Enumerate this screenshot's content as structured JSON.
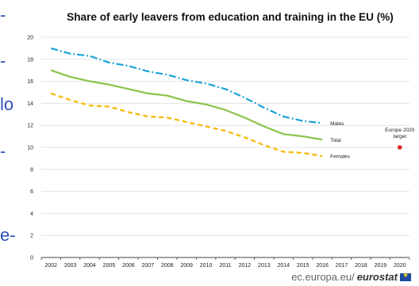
{
  "side_fragments": [
    "-",
    "-",
    "lo",
    "-",
    "e-"
  ],
  "footer": {
    "plain": "ec.europa.eu/",
    "bold": "eurostat"
  },
  "chart_data": {
    "type": "line",
    "title": "Share of early leavers from education and training in the EU (%)",
    "xlabel": "",
    "ylabel": "",
    "x": [
      "2002",
      "2003",
      "2004",
      "2005",
      "2006",
      "2007",
      "2008",
      "2009",
      "2010",
      "2011",
      "2012",
      "2013",
      "2014",
      "2015",
      "2016",
      "2017",
      "2018",
      "2019",
      "2020"
    ],
    "ylim": [
      0,
      20
    ],
    "yticks": [
      0,
      2,
      4,
      6,
      8,
      10,
      12,
      14,
      16,
      18,
      20
    ],
    "grid": "horizontal",
    "series": [
      {
        "name": "Males",
        "color": "#1aa3d9",
        "style": "dash-dot",
        "values": [
          19.0,
          18.5,
          18.3,
          17.7,
          17.4,
          16.9,
          16.6,
          16.1,
          15.8,
          15.3,
          14.5,
          13.6,
          12.8,
          12.4,
          12.2,
          null,
          null,
          null,
          null
        ]
      },
      {
        "name": "Total",
        "color": "#8bc34a",
        "style": "solid",
        "values": [
          17.0,
          16.4,
          16.0,
          15.7,
          15.3,
          14.9,
          14.7,
          14.2,
          13.9,
          13.4,
          12.7,
          11.9,
          11.2,
          11.0,
          10.7,
          null,
          null,
          null,
          null
        ]
      },
      {
        "name": "Females",
        "color": "#f5b800",
        "style": "dashed",
        "values": [
          14.9,
          14.3,
          13.8,
          13.7,
          13.2,
          12.8,
          12.7,
          12.3,
          11.9,
          11.5,
          10.9,
          10.2,
          9.6,
          9.5,
          9.2,
          null,
          null,
          null,
          null
        ]
      }
    ],
    "target": {
      "label_line1": "Europe 2020",
      "label_line2": "target",
      "x": "2020",
      "value": 10,
      "color": "#e02020"
    }
  }
}
